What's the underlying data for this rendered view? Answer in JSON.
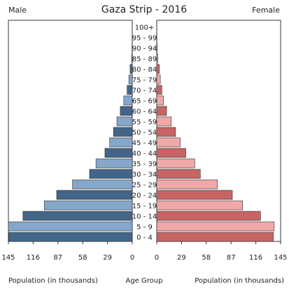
{
  "chart_data": {
    "type": "bar",
    "title": "Gaza Strip - 2016",
    "left_label": "Male",
    "right_label": "Female",
    "xlabel_left": "Population (in thousands)",
    "xlabel_center": "Age Group",
    "xlabel_right": "Population (in thousands)",
    "xlim": [
      0,
      145
    ],
    "ticks_left": [
      "145",
      "116",
      "87",
      "58",
      "29",
      "0"
    ],
    "ticks_right": [
      "0",
      "29",
      "58",
      "87",
      "116",
      "145"
    ],
    "tick_values_left": [
      145,
      116,
      87,
      58,
      29,
      0
    ],
    "tick_values_right": [
      0,
      29,
      58,
      87,
      116,
      145
    ],
    "categories": [
      "100+",
      "95 - 99",
      "90 - 94",
      "85 - 89",
      "80 - 84",
      "75 - 79",
      "70 - 74",
      "65 - 69",
      "60 - 64",
      "55 - 59",
      "50 - 54",
      "45 - 49",
      "40 - 44",
      "35 - 39",
      "30 - 34",
      "25 - 29",
      "20 - 24",
      "15 - 19",
      "10 - 14",
      "5 - 9",
      "0 - 4"
    ],
    "series": [
      {
        "name": "Male",
        "values": [
          0.1,
          0.2,
          0.3,
          0.6,
          2.5,
          4.0,
          6.0,
          10.0,
          14.0,
          18.0,
          22.0,
          26.5,
          32.0,
          42.5,
          50.0,
          70.0,
          88.5,
          103.0,
          128.0,
          145.0,
          144.5
        ]
      },
      {
        "name": "Female",
        "values": [
          0.1,
          0.2,
          0.5,
          1.2,
          3.0,
          4.2,
          6.0,
          8.0,
          11.5,
          17.0,
          22.0,
          27.5,
          34.0,
          44.5,
          51.0,
          71.0,
          88.5,
          100.5,
          121.5,
          137.5,
          136.5
        ]
      }
    ],
    "colors": {
      "dark_blue": "#43658a",
      "light_blue": "#86a7cc",
      "dark_red": "#c86464",
      "light_red": "#f1a8a8",
      "bar_outline": "#2f2f2f",
      "frame": "#333333"
    }
  }
}
